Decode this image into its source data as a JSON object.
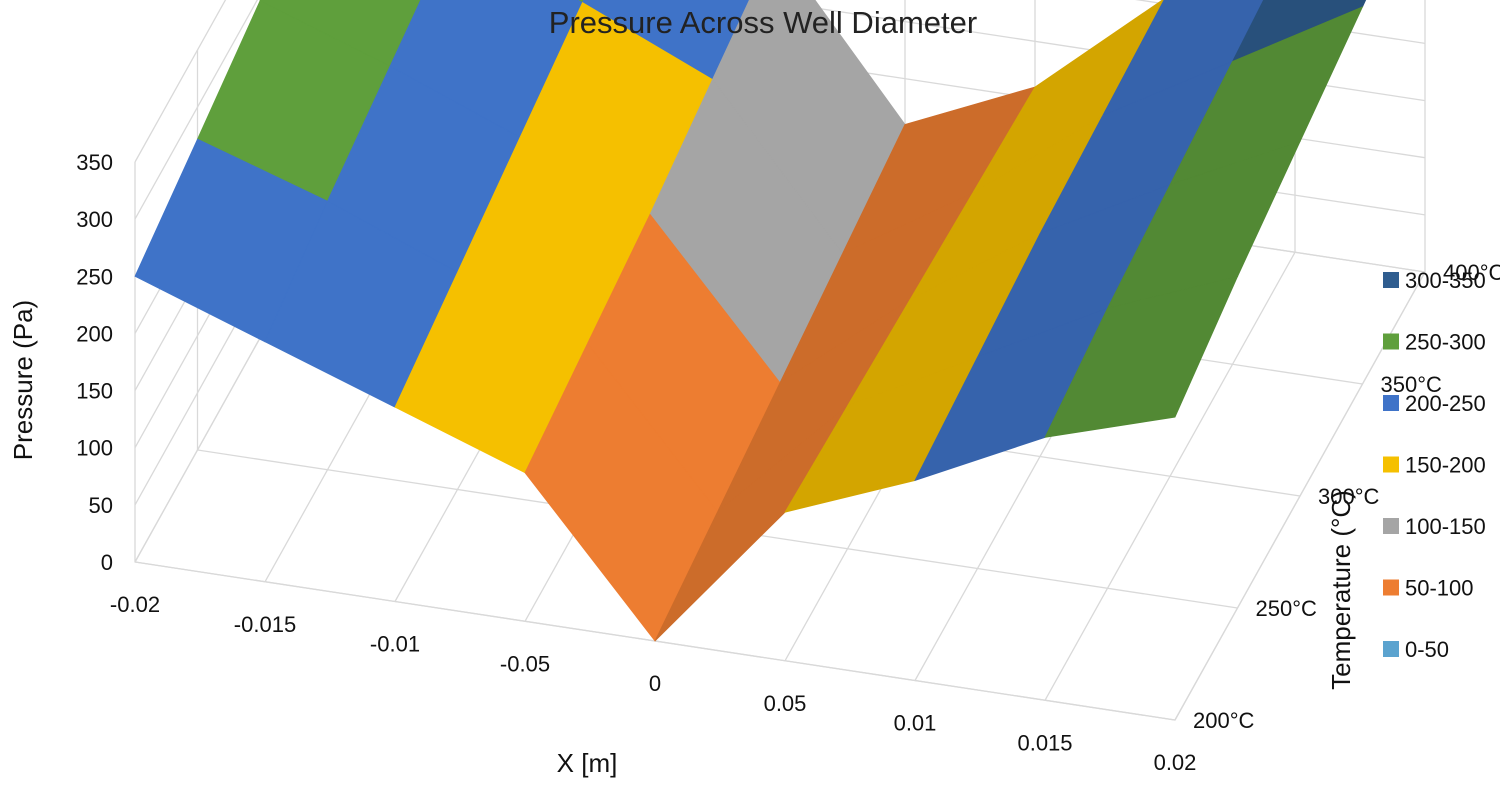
{
  "chart_data": {
    "type": "surface",
    "title": "Pressure Across Well Diameter",
    "xlabel": "X [m]",
    "ylabel": "Temperature (°C)",
    "zlabel": "Pressure (Pa)",
    "x_ticks": [
      "-0.02",
      "-0.015",
      "-0.01",
      "-0.05",
      "0",
      "0.05",
      "0.01",
      "0.015",
      "0.02"
    ],
    "y_ticks": [
      "200°C",
      "250°C",
      "300°C",
      "350°C",
      "400°C"
    ],
    "z_ticks": [
      "0",
      "50",
      "100",
      "150",
      "200",
      "250",
      "300",
      "350"
    ],
    "zlim": [
      0,
      350
    ],
    "grid": true,
    "legend_position": "right",
    "legend": [
      {
        "label": "300-350",
        "color": "#2f5d8f"
      },
      {
        "label": "250-300",
        "color": "#5f9f3c"
      },
      {
        "label": "200-250",
        "color": "#3f73c8"
      },
      {
        "label": "150-200",
        "color": "#f5c000"
      },
      {
        "label": "100-150",
        "color": "#a5a5a5"
      },
      {
        "label": "50-100",
        "color": "#ed7d31"
      },
      {
        "label": "0-50",
        "color": "#5ba3cf"
      }
    ],
    "series": [
      {
        "values": [
          250,
          210,
          170,
          130,
          0,
          130,
          175,
          230,
          265
        ]
      },
      {
        "values": [
          272,
          235,
          190,
          145,
          15,
          125,
          185,
          245,
          290
        ]
      },
      {
        "values": [
          295,
          255,
          210,
          160,
          30,
          120,
          195,
          255,
          310
        ]
      },
      {
        "values": [
          315,
          275,
          230,
          180,
          45,
          115,
          200,
          265,
          330
        ]
      },
      {
        "values": [
          335,
          300,
          250,
          200,
          60,
          110,
          205,
          275,
          350
        ]
      }
    ]
  }
}
